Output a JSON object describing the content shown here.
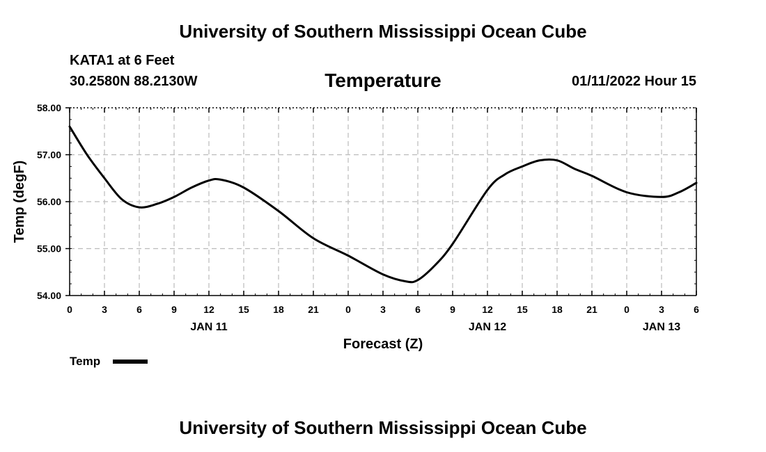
{
  "header": {
    "title": "University of Southern Mississippi Ocean Cube",
    "station": "KATA1 at 6 Feet",
    "coords": "30.2580N  88.2130W",
    "variable": "Temperature",
    "datetime": "01/11/2022 Hour 15"
  },
  "footer": {
    "title": "University of Southern Mississippi Ocean Cube"
  },
  "legend": {
    "label": "Temp",
    "color": "#000000"
  },
  "chart_data": {
    "type": "line",
    "xlabel": "Forecast (Z)",
    "ylabel": "Temp (degF)",
    "xlim": [
      0,
      54
    ],
    "ylim": [
      54.0,
      58.0
    ],
    "grid": true,
    "legend_position": "bottom-left",
    "y_ticks": [
      "54.00",
      "55.00",
      "56.00",
      "57.00",
      "58.00"
    ],
    "x_ticks": [
      {
        "pos": 0,
        "label": "0"
      },
      {
        "pos": 3,
        "label": "3"
      },
      {
        "pos": 6,
        "label": "6"
      },
      {
        "pos": 9,
        "label": "9"
      },
      {
        "pos": 12,
        "label": "12"
      },
      {
        "pos": 15,
        "label": "15"
      },
      {
        "pos": 18,
        "label": "18"
      },
      {
        "pos": 21,
        "label": "21"
      },
      {
        "pos": 24,
        "label": "0"
      },
      {
        "pos": 27,
        "label": "3"
      },
      {
        "pos": 30,
        "label": "6"
      },
      {
        "pos": 33,
        "label": "9"
      },
      {
        "pos": 36,
        "label": "12"
      },
      {
        "pos": 39,
        "label": "15"
      },
      {
        "pos": 42,
        "label": "18"
      },
      {
        "pos": 45,
        "label": "21"
      },
      {
        "pos": 48,
        "label": "0"
      },
      {
        "pos": 51,
        "label": "3"
      },
      {
        "pos": 54,
        "label": "6"
      }
    ],
    "date_labels": [
      {
        "pos": 12,
        "label": "JAN 11"
      },
      {
        "pos": 36,
        "label": "JAN 12"
      },
      {
        "pos": 51,
        "label": "JAN 13"
      }
    ],
    "series": [
      {
        "name": "Temp",
        "color": "#000000",
        "x": [
          0,
          1.5,
          3,
          4.5,
          6,
          7.5,
          9,
          10.5,
          12,
          13,
          15,
          18,
          21,
          24,
          27,
          29,
          30,
          31.5,
          33,
          36,
          37.5,
          39,
          40.5,
          42,
          43.5,
          45,
          48,
          51,
          52.5,
          54
        ],
        "y": [
          57.6,
          57.0,
          56.5,
          56.05,
          55.88,
          55.95,
          56.1,
          56.3,
          56.45,
          56.47,
          56.3,
          55.8,
          55.22,
          54.85,
          54.45,
          54.3,
          54.33,
          54.65,
          55.1,
          56.25,
          56.58,
          56.75,
          56.88,
          56.88,
          56.7,
          56.55,
          56.2,
          56.1,
          56.2,
          56.4
        ]
      }
    ]
  }
}
